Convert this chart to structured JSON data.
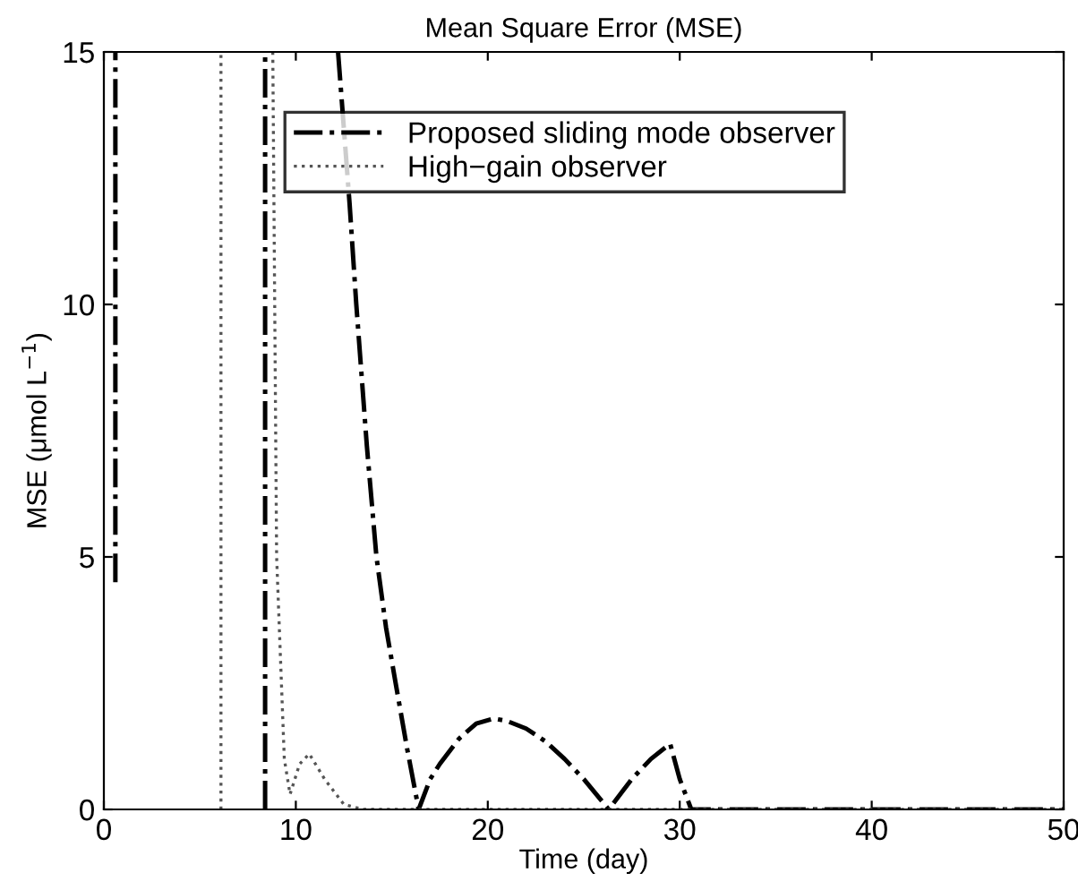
{
  "chart_data": {
    "type": "line",
    "title": "Mean Square Error (MSE)",
    "xlabel": "Time (day)",
    "ylabel": "MSE (μmol L$^{−1}$)",
    "xlim": [
      0,
      50
    ],
    "ylim": [
      0,
      15
    ],
    "xticks": [
      0,
      10,
      20,
      30,
      40,
      50
    ],
    "yticks": [
      0,
      5,
      10,
      15
    ],
    "grid": false,
    "legend": "top",
    "marker": "none",
    "series": [
      {
        "color": "#000000",
        "line_style": "dashdot",
        "x": [
          0.6,
          0.6
        ],
        "values": [
          4.5,
          15
        ]
      },
      {
        "color": "#000000",
        "line_style": "dashdot",
        "x": [
          8.4,
          8.4
        ],
        "values": [
          0,
          15
        ]
      },
      {
        "name": "Proposed sliding mode observer",
        "color": "#000000",
        "line_style": "dashdot",
        "x": [
          12.2,
          12.8,
          13.15,
          13.7,
          14.2,
          14.7,
          15.2,
          15.8,
          16.4,
          17,
          17.5,
          18.5,
          19.4,
          20.3,
          21,
          22,
          23,
          24,
          25,
          26.3,
          27,
          27.5,
          28.5,
          29.5,
          30,
          30.6,
          50
        ],
        "values": [
          15,
          12,
          10,
          7.2,
          5,
          3.6,
          2.5,
          1.2,
          0,
          0.6,
          0.9,
          1.4,
          1.7,
          1.8,
          1.75,
          1.6,
          1.35,
          1.0,
          0.6,
          0,
          0.35,
          0.6,
          1.0,
          1.3,
          0.6,
          0,
          0
        ]
      },
      {
        "color": "#555555",
        "line_style": "dotted",
        "x": [
          6.1,
          6.1
        ],
        "values": [
          0,
          15
        ]
      },
      {
        "name": "High−gain observer",
        "color": "#555555",
        "line_style": "dotted",
        "x": [
          8.8,
          9.0,
          9.4,
          9.7,
          10.2,
          10.7,
          11.5,
          12.5,
          13.5,
          50
        ],
        "values": [
          15,
          5,
          1,
          0.3,
          0.9,
          1.1,
          0.6,
          0.1,
          0,
          0
        ]
      }
    ]
  }
}
